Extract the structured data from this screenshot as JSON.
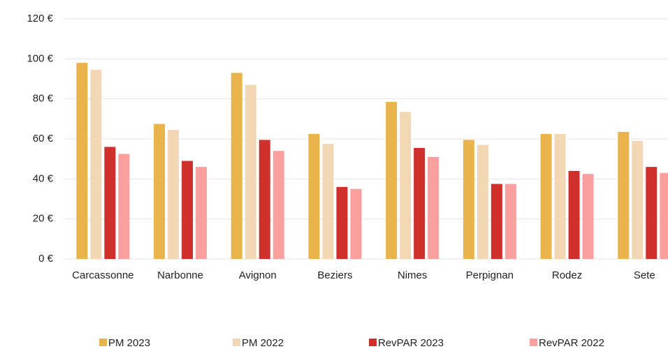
{
  "chart_data": {
    "type": "bar",
    "categories": [
      "Carcassonne",
      "Narbonne",
      "Avignon",
      "Beziers",
      "Nimes",
      "Perpignan",
      "Rodez",
      "Sete"
    ],
    "series": [
      {
        "name": "PM 2023",
        "color": "#E9B44C",
        "values": [
          98,
          67.5,
          93,
          62.5,
          78.5,
          59.5,
          62.5,
          63.5
        ]
      },
      {
        "name": "PM 2022",
        "color": "#F2D7B5",
        "values": [
          94.5,
          64.5,
          87,
          57.5,
          73.5,
          57,
          62.5,
          59
        ]
      },
      {
        "name": "RevPAR 2023",
        "color": "#D0302B",
        "values": [
          56,
          49,
          59.5,
          36,
          55.5,
          37.5,
          44,
          46
        ]
      },
      {
        "name": "RevPAR 2022",
        "color": "#F9A09E",
        "values": [
          52.5,
          46,
          54,
          35,
          51,
          37.5,
          42.5,
          43
        ]
      }
    ],
    "ylim": [
      0,
      120
    ],
    "yticks": [
      {
        "value": 0,
        "label": "0 €"
      },
      {
        "value": 20,
        "label": "20 €"
      },
      {
        "value": 40,
        "label": "40 €"
      },
      {
        "value": 60,
        "label": "60 €"
      },
      {
        "value": 80,
        "label": "80 €"
      },
      {
        "value": 100,
        "label": "100 €"
      },
      {
        "value": 120,
        "label": "120 €"
      }
    ],
    "grid": true,
    "legend": "bottom"
  }
}
